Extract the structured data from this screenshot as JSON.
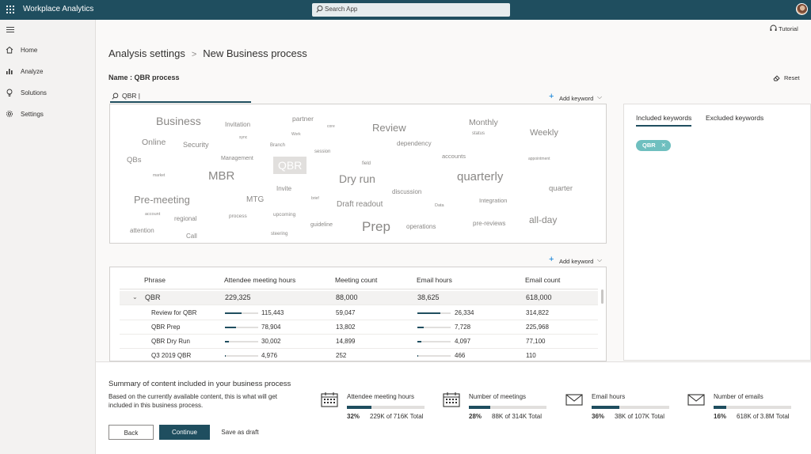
{
  "app": {
    "title": "Workplace Analytics",
    "search_placeholder": "Search App",
    "tutorial": "Tutorial"
  },
  "sidebar": {
    "items": [
      {
        "label": "Home",
        "icon": "home-icon"
      },
      {
        "label": "Analyze",
        "icon": "chart-icon"
      },
      {
        "label": "Solutions",
        "icon": "lightbulb-icon"
      },
      {
        "label": "Settings",
        "icon": "gear-icon"
      }
    ]
  },
  "breadcrumb": {
    "parent": "Analysis settings",
    "separator": ">",
    "current": "New Business process"
  },
  "process": {
    "name_label": "Name : QBR process",
    "reset": "Reset"
  },
  "keyword_input": {
    "value": "QBR |"
  },
  "add_keyword": "Add keyword",
  "word_cloud": [
    "Business",
    "Invitation",
    "partner",
    "core",
    "Review",
    "Monthly",
    "sync",
    "Work",
    "status",
    "Weekly",
    "Online",
    "Security",
    "Branch",
    "dependency",
    "session",
    "accounts",
    "QBs",
    "Management",
    "field",
    "appointment",
    "market",
    "MBR",
    "QBR",
    "Dry run",
    "quarterly",
    "Invite",
    "quarter",
    "Pre-meeting",
    "MTG",
    "brief",
    "discussion",
    "Integration",
    "account",
    "Draft readout",
    "Data",
    "upcoming",
    "regional",
    "process",
    "all-day",
    "attention",
    "guideline",
    "Prep",
    "operations",
    "pre-reviews",
    "Call",
    "steering"
  ],
  "keywords_panel": {
    "tab_included": "Included keywords",
    "tab_excluded": "Excluded keywords",
    "chips": [
      "QBR"
    ]
  },
  "table": {
    "headers": [
      "Phrase",
      "Attendee meeting hours",
      "Meeting count",
      "Email hours",
      "Email count"
    ],
    "rows": [
      {
        "phrase": "QBR",
        "attendee_hours": "229,325",
        "meeting_count": "88,000",
        "email_hours": "38,625",
        "email_count": "618,000",
        "attendee_frac": null,
        "email_frac": null
      },
      {
        "phrase": "Review for QBR",
        "attendee_hours": "115,443",
        "meeting_count": "59,047",
        "email_hours": "26,334",
        "email_count": "314,822",
        "attendee_frac": 0.5,
        "email_frac": 0.68
      },
      {
        "phrase": "QBR Prep",
        "attendee_hours": "78,904",
        "meeting_count": "13,802",
        "email_hours": "7,728",
        "email_count": "225,968",
        "attendee_frac": 0.34,
        "email_frac": 0.2
      },
      {
        "phrase": "QBR Dry Run",
        "attendee_hours": "30,002",
        "meeting_count": "14,899",
        "email_hours": "4,097",
        "email_count": "77,100",
        "attendee_frac": 0.13,
        "email_frac": 0.11
      },
      {
        "phrase": "Q3 2019 QBR",
        "attendee_hours": "4,976",
        "meeting_count": "252",
        "email_hours": "466",
        "email_count": "110",
        "attendee_frac": 0.03,
        "email_frac": 0.02
      }
    ]
  },
  "summary": {
    "title": "Summary of content included in your business process",
    "description": "Based on the currently available content, this is what will get included in this business process.",
    "metrics": [
      {
        "label": "Attendee meeting hours",
        "percent": "32%",
        "detail": "229K of 716K Total",
        "fraction": 0.32,
        "icon": "calendar-icon"
      },
      {
        "label": "Number of meetings",
        "percent": "28%",
        "detail": "88K of 314K Total",
        "fraction": 0.28,
        "icon": "calendar-icon"
      },
      {
        "label": "Email hours",
        "percent": "36%",
        "detail": "38K of 107K Total",
        "fraction": 0.36,
        "icon": "mail-icon"
      },
      {
        "label": "Number of emails",
        "percent": "16%",
        "detail": "618K of 3.8M Total",
        "fraction": 0.16,
        "icon": "mail-icon"
      }
    ]
  },
  "buttons": {
    "back": "Back",
    "continue": "Continue",
    "save_draft": "Save as draft"
  },
  "colors": {
    "header": "#1f4e5f",
    "accent": "#0078d4",
    "chip": "#6fbfbf"
  }
}
